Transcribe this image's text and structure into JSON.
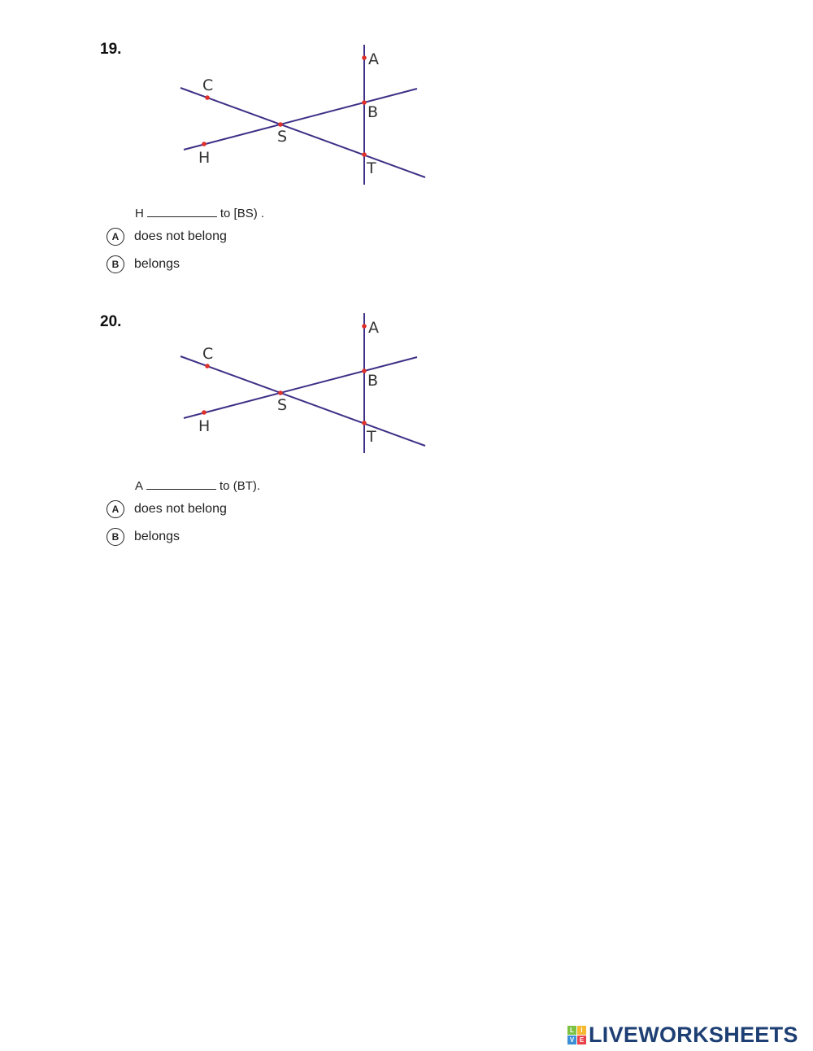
{
  "questions": [
    {
      "number": "19.",
      "statement_before": "H",
      "statement_after": "to [BS) .",
      "options": [
        {
          "letter": "A",
          "text": "does not belong"
        },
        {
          "letter": "B",
          "text": "belongs"
        }
      ],
      "points": {
        "A": "A",
        "B": "B",
        "C": "C",
        "S": "S",
        "H": "H",
        "T": "T"
      }
    },
    {
      "number": "20.",
      "statement_before": "A",
      "statement_after": "to (BT).",
      "options": [
        {
          "letter": "A",
          "text": "does not belong"
        },
        {
          "letter": "B",
          "text": "belongs"
        }
      ],
      "points": {
        "A": "A",
        "B": "B",
        "C": "C",
        "S": "S",
        "H": "H",
        "T": "T"
      }
    }
  ],
  "colors": {
    "line": "#3f2f86",
    "point": "#e0302a",
    "logo": "#1d3f73"
  },
  "logo": {
    "text": "LIVEWORKSHEETS",
    "tiles": [
      "L",
      "I",
      "V",
      "E"
    ]
  }
}
